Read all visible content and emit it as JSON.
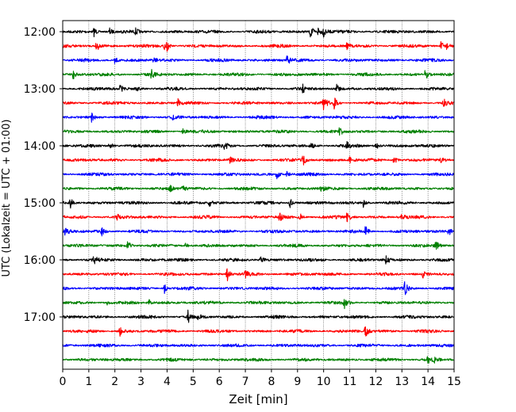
{
  "chart_data": {
    "type": "line",
    "xlabel": "Zeit  [min]",
    "ylabel": "UTC (Lokalzeit = UTC + 01:00)",
    "xlim": [
      0,
      15
    ],
    "x_ticks": [
      0,
      1,
      2,
      3,
      4,
      5,
      6,
      7,
      8,
      9,
      10,
      11,
      12,
      13,
      14,
      15
    ],
    "x_grid": true,
    "y_ticks": [
      {
        "label": "12:00",
        "trace": 0
      },
      {
        "label": "13:00",
        "trace": 4
      },
      {
        "label": "14:00",
        "trace": 8
      },
      {
        "label": "15:00",
        "trace": 12
      },
      {
        "label": "16:00",
        "trace": 16
      },
      {
        "label": "17:00",
        "trace": 20
      }
    ],
    "trace_interval_min": 15,
    "trace_colors": [
      "#000000",
      "#ff0000",
      "#0000ff",
      "#008000"
    ],
    "series": [
      {
        "start": "12:00",
        "color": "#000000",
        "events": [
          [
            1.2,
            0.6
          ],
          [
            1.8,
            0.5
          ],
          [
            2.8,
            0.4
          ],
          [
            9.5,
            1.0
          ],
          [
            9.8,
            0.8
          ],
          [
            10.0,
            0.7
          ]
        ]
      },
      {
        "start": "12:15",
        "color": "#ff0000",
        "events": [
          [
            1.3,
            0.8
          ],
          [
            3.9,
            0.5
          ],
          [
            4.0,
            0.6
          ],
          [
            10.9,
            0.5
          ],
          [
            14.5,
            0.6
          ],
          [
            14.7,
            0.5
          ]
        ]
      },
      {
        "start": "12:30",
        "color": "#0000ff",
        "events": [
          [
            2.0,
            0.5
          ],
          [
            3.5,
            0.4
          ],
          [
            8.6,
            0.7
          ]
        ]
      },
      {
        "start": "12:45",
        "color": "#008000",
        "events": [
          [
            0.4,
            0.7
          ],
          [
            3.4,
            0.6
          ],
          [
            13.9,
            0.7
          ]
        ]
      },
      {
        "start": "13:00",
        "color": "#000000",
        "events": [
          [
            2.2,
            0.6
          ],
          [
            2.8,
            0.4
          ],
          [
            9.2,
            0.5
          ],
          [
            10.5,
            0.7
          ]
        ]
      },
      {
        "start": "13:15",
        "color": "#ff0000",
        "events": [
          [
            4.4,
            0.8
          ],
          [
            10.0,
            0.9
          ],
          [
            10.4,
            0.8
          ],
          [
            14.6,
            0.6
          ]
        ]
      },
      {
        "start": "13:30",
        "color": "#0000ff",
        "events": [
          [
            1.1,
            0.7
          ],
          [
            4.2,
            0.4
          ]
        ]
      },
      {
        "start": "13:45",
        "color": "#008000",
        "events": [
          [
            4.6,
            0.5
          ],
          [
            10.6,
            0.7
          ]
        ]
      },
      {
        "start": "14:00",
        "color": "#000000",
        "events": [
          [
            1.8,
            0.8
          ],
          [
            6.2,
            0.5
          ],
          [
            9.5,
            0.6
          ],
          [
            10.9,
            0.6
          ],
          [
            12.0,
            0.6
          ]
        ]
      },
      {
        "start": "14:15",
        "color": "#ff0000",
        "events": [
          [
            6.4,
            0.5
          ],
          [
            9.2,
            0.8
          ],
          [
            11.0,
            0.5
          ],
          [
            12.7,
            0.7
          ],
          [
            14.5,
            0.5
          ]
        ]
      },
      {
        "start": "14:30",
        "color": "#0000ff",
        "events": [
          [
            8.2,
            0.7
          ],
          [
            8.6,
            0.4
          ]
        ]
      },
      {
        "start": "14:45",
        "color": "#008000",
        "events": [
          [
            4.1,
            0.7
          ],
          [
            4.6,
            0.5
          ],
          [
            9.9,
            0.4
          ]
        ]
      },
      {
        "start": "15:00",
        "color": "#000000",
        "events": [
          [
            0.3,
            0.7
          ],
          [
            5.6,
            0.6
          ],
          [
            8.7,
            0.8
          ],
          [
            11.5,
            0.7
          ]
        ]
      },
      {
        "start": "15:15",
        "color": "#ff0000",
        "events": [
          [
            2.1,
            0.5
          ],
          [
            8.3,
            0.7
          ],
          [
            9.1,
            0.5
          ],
          [
            10.9,
            0.8
          ],
          [
            13.0,
            0.5
          ]
        ]
      },
      {
        "start": "15:30",
        "color": "#0000ff",
        "events": [
          [
            0.1,
            0.9
          ],
          [
            1.5,
            0.5
          ],
          [
            11.6,
            0.7
          ],
          [
            14.8,
            0.6
          ]
        ]
      },
      {
        "start": "15:45",
        "color": "#008000",
        "events": [
          [
            2.5,
            0.7
          ],
          [
            4.7,
            0.4
          ],
          [
            14.3,
            0.8
          ]
        ]
      },
      {
        "start": "16:00",
        "color": "#000000",
        "events": [
          [
            1.2,
            0.6
          ],
          [
            7.6,
            0.5
          ],
          [
            12.4,
            0.8
          ]
        ]
      },
      {
        "start": "16:15",
        "color": "#ff0000",
        "events": [
          [
            6.3,
            1.0
          ],
          [
            7.0,
            0.4
          ],
          [
            13.8,
            0.5
          ]
        ]
      },
      {
        "start": "16:30",
        "color": "#0000ff",
        "events": [
          [
            3.9,
            0.8
          ],
          [
            13.1,
            1.0
          ]
        ]
      },
      {
        "start": "16:45",
        "color": "#008000",
        "events": [
          [
            1.7,
            0.4
          ],
          [
            3.3,
            0.4
          ],
          [
            10.8,
            0.9
          ]
        ]
      },
      {
        "start": "17:00",
        "color": "#000000",
        "events": [
          [
            4.8,
            1.0
          ],
          [
            5.2,
            0.4
          ]
        ]
      },
      {
        "start": "17:15",
        "color": "#ff0000",
        "events": [
          [
            2.2,
            0.9
          ],
          [
            11.6,
            1.0
          ]
        ]
      },
      {
        "start": "17:30",
        "color": "#0000ff",
        "events": []
      },
      {
        "start": "17:45",
        "color": "#008000",
        "events": [
          [
            14.0,
            0.5
          ],
          [
            14.2,
            0.5
          ]
        ]
      }
    ]
  }
}
